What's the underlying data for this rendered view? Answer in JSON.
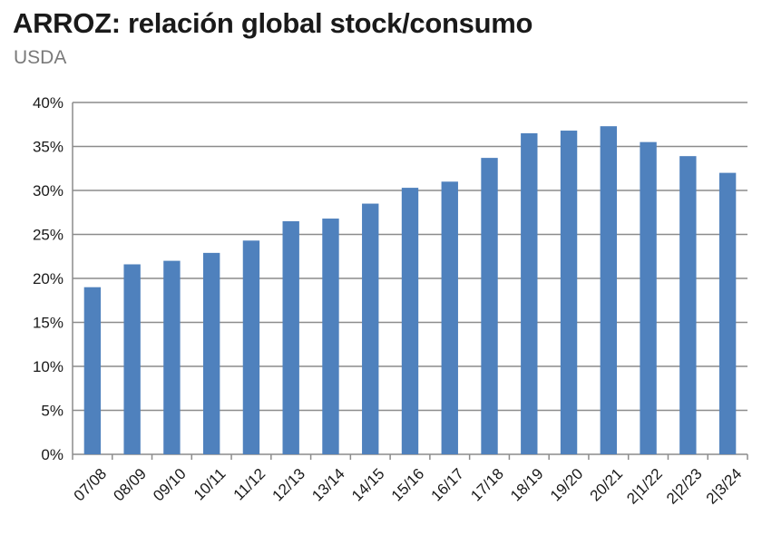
{
  "chart_data": {
    "type": "bar",
    "title": "ARROZ: relación global stock/consumo",
    "subtitle": "USDA",
    "xlabel": "",
    "ylabel": "",
    "categories": [
      "07/08",
      "08/09",
      "09/10",
      "10/11",
      "11/12",
      "12/13",
      "13/14",
      "14/15",
      "15/16",
      "16/17",
      "17/18",
      "18/19",
      "19/20",
      "20/21",
      "2|1/22",
      "2|2/23",
      "2|3/24"
    ],
    "values": [
      19.0,
      21.6,
      22.0,
      22.9,
      24.3,
      26.5,
      26.8,
      28.5,
      30.3,
      31.0,
      33.7,
      36.5,
      36.8,
      37.3,
      35.5,
      33.9,
      32.0
    ],
    "ylim": [
      0,
      40
    ],
    "yticks": [
      0,
      5,
      10,
      15,
      20,
      25,
      30,
      35,
      40
    ],
    "ytick_labels": [
      "0%",
      "5%",
      "10%",
      "15%",
      "20%",
      "25%",
      "30%",
      "35%",
      "40%"
    ],
    "grid": true,
    "bar_color": "#4f81bd",
    "grid_color": "#8c8c8c",
    "legend": "none"
  }
}
